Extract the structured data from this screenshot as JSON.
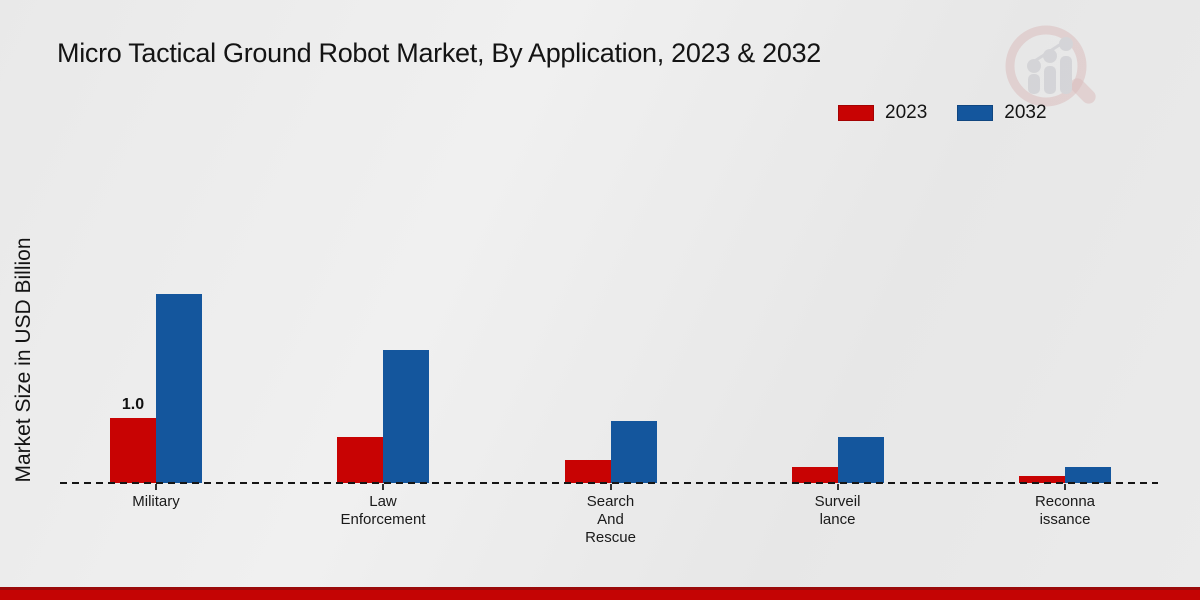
{
  "ylabel": "Market Size in USD Billion",
  "legend": {
    "items": [
      {
        "label": "2023",
        "color": "#c80303"
      },
      {
        "label": "2032",
        "color": "#14569d"
      }
    ]
  },
  "watermark_colors": {
    "ring": "#cf9a9a",
    "bars": "#c6c6cb"
  },
  "footer": {
    "bar_color": "#c40404",
    "bar_edge_color": "#9b0a0a"
  },
  "chart_data": {
    "type": "bar",
    "title": "Micro Tactical Ground Robot Market, By Application, 2023 & 2032",
    "categories": [
      "Military",
      "Law Enforcement",
      "Search And Rescue",
      "Surveillance",
      "Reconnaissance"
    ],
    "category_label_lines": [
      [
        "Military"
      ],
      [
        "Law",
        "Enforcement"
      ],
      [
        "Search",
        "And",
        "Rescue"
      ],
      [
        "Surveil",
        "lance"
      ],
      [
        "Reconna",
        "issance"
      ]
    ],
    "series": [
      {
        "name": "2023",
        "color": "#c80303",
        "values": [
          1.0,
          0.7,
          0.35,
          0.25,
          0.1
        ],
        "data_labels": [
          "1.0",
          null,
          null,
          null,
          null
        ]
      },
      {
        "name": "2032",
        "color": "#14569d",
        "values": [
          2.9,
          2.05,
          0.95,
          0.7,
          0.25
        ],
        "data_labels": [
          null,
          null,
          null,
          null,
          null
        ]
      }
    ],
    "xlabel": "",
    "ylabel": "Market Size in USD Billion",
    "ylim": [
      0,
      3.2
    ],
    "grid": false,
    "baseline_style": "black dashed",
    "legend_position": "top-right"
  }
}
